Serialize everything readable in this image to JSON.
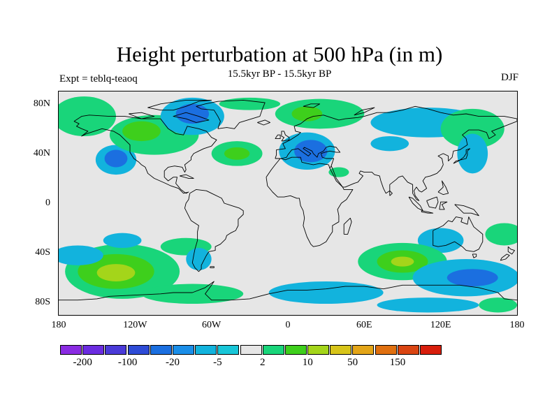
{
  "title": "Height perturbation at 500 hPa (in m)",
  "subtitle": "15.5kyr BP - 15.5kyr BP",
  "left_label": "Expt = teblq-teaoq",
  "right_label": "DJF",
  "map": {
    "projection": "cylindrical-equidistant",
    "lon_range": [
      -180,
      180
    ],
    "lat_range": [
      -90,
      90
    ],
    "background": "#e6e6e6",
    "coastline_color": "#000000",
    "lat_ticks": [
      {
        "value": 80,
        "label": "80N"
      },
      {
        "value": 40,
        "label": "40N"
      },
      {
        "value": 0,
        "label": "0"
      },
      {
        "value": -40,
        "label": "40S"
      },
      {
        "value": -80,
        "label": "80S"
      }
    ],
    "lon_ticks": [
      {
        "value": -180,
        "label": "180"
      },
      {
        "value": -120,
        "label": "120W"
      },
      {
        "value": -60,
        "label": "60W"
      },
      {
        "value": 0,
        "label": "0"
      },
      {
        "value": 60,
        "label": "60E"
      },
      {
        "value": 120,
        "label": "120E"
      },
      {
        "value": 180,
        "label": "180"
      }
    ],
    "anomaly_regions": [
      {
        "lon": -135,
        "lat": 35,
        "rlon": 16,
        "rlat": 12,
        "level": "-5"
      },
      {
        "lon": -135,
        "lat": 36,
        "rlon": 9,
        "rlat": 7,
        "level": "-20"
      },
      {
        "lon": -160,
        "lat": 70,
        "rlon": 25,
        "rlat": 16,
        "level": "2"
      },
      {
        "lon": -105,
        "lat": 55,
        "rlon": 35,
        "rlat": 16,
        "level": "2"
      },
      {
        "lon": -115,
        "lat": 58,
        "rlon": 15,
        "rlat": 8,
        "level": "10"
      },
      {
        "lon": -75,
        "lat": 70,
        "rlon": 25,
        "rlat": 15,
        "level": "-5"
      },
      {
        "lon": -75,
        "lat": 72,
        "rlon": 13,
        "rlat": 8,
        "level": "-20"
      },
      {
        "lon": -40,
        "lat": 40,
        "rlon": 20,
        "rlat": 10,
        "level": "2"
      },
      {
        "lon": -40,
        "lat": 40,
        "rlon": 10,
        "rlat": 5,
        "level": "10"
      },
      {
        "lon": -30,
        "lat": 80,
        "rlon": 24,
        "rlat": 5,
        "level": "2"
      },
      {
        "lon": 15,
        "lat": 42,
        "rlon": 22,
        "rlat": 15,
        "level": "-5"
      },
      {
        "lon": 18,
        "lat": 42,
        "rlon": 13,
        "rlat": 9,
        "level": "-20"
      },
      {
        "lon": 25,
        "lat": 72,
        "rlon": 35,
        "rlat": 12,
        "level": "2"
      },
      {
        "lon": 15,
        "lat": 72,
        "rlon": 12,
        "rlat": 6,
        "level": "10"
      },
      {
        "lon": 40,
        "lat": 25,
        "rlon": 8,
        "rlat": 4,
        "level": "2"
      },
      {
        "lon": 110,
        "lat": 65,
        "rlon": 45,
        "rlat": 12,
        "level": "-5"
      },
      {
        "lon": 145,
        "lat": 60,
        "rlon": 25,
        "rlat": 16,
        "level": "2"
      },
      {
        "lon": 145,
        "lat": 40,
        "rlon": 12,
        "rlat": 16,
        "level": "-5"
      },
      {
        "lon": 80,
        "lat": 48,
        "rlon": 15,
        "rlat": 6,
        "level": "-5"
      },
      {
        "lon": 170,
        "lat": -25,
        "rlon": 15,
        "rlat": 9,
        "level": "2"
      },
      {
        "lon": 120,
        "lat": -30,
        "rlon": 18,
        "rlat": 10,
        "level": "-5"
      },
      {
        "lon": -130,
        "lat": -55,
        "rlon": 45,
        "rlat": 22,
        "level": "2"
      },
      {
        "lon": -135,
        "lat": -55,
        "rlon": 30,
        "rlat": 14,
        "level": "10"
      },
      {
        "lon": -135,
        "lat": -56,
        "rlon": 15,
        "rlat": 7,
        "level": "20"
      },
      {
        "lon": -165,
        "lat": -42,
        "rlon": 20,
        "rlat": 8,
        "level": "-5"
      },
      {
        "lon": -130,
        "lat": -30,
        "rlon": 15,
        "rlat": 6,
        "level": "-5"
      },
      {
        "lon": -80,
        "lat": -35,
        "rlon": 20,
        "rlat": 7,
        "level": "2"
      },
      {
        "lon": -70,
        "lat": -45,
        "rlon": 10,
        "rlat": 9,
        "level": "-5"
      },
      {
        "lon": -75,
        "lat": -73,
        "rlon": 40,
        "rlat": 8,
        "level": "2"
      },
      {
        "lon": 90,
        "lat": -47,
        "rlon": 35,
        "rlat": 15,
        "level": "2"
      },
      {
        "lon": 90,
        "lat": -47,
        "rlon": 20,
        "rlat": 9,
        "level": "10"
      },
      {
        "lon": 90,
        "lat": -47,
        "rlon": 9,
        "rlat": 4,
        "level": "20"
      },
      {
        "lon": 140,
        "lat": -60,
        "rlon": 42,
        "rlat": 15,
        "level": "-5"
      },
      {
        "lon": 145,
        "lat": -60,
        "rlon": 20,
        "rlat": 7,
        "level": "-20"
      },
      {
        "lon": 30,
        "lat": -72,
        "rlon": 45,
        "rlat": 9,
        "level": "-5"
      },
      {
        "lon": 110,
        "lat": -82,
        "rlon": 40,
        "rlat": 6,
        "level": "-5"
      },
      {
        "lon": 165,
        "lat": -82,
        "rlon": 15,
        "rlat": 6,
        "level": "2"
      }
    ]
  },
  "colorbar": {
    "colors": [
      "#8a2be2",
      "#6b2ce0",
      "#4a3ad8",
      "#2e4bd6",
      "#1b6fe0",
      "#1a8ee8",
      "#12b3dd",
      "#18c6d8",
      "#e6e6e6",
      "#19d57a",
      "#3ecf1c",
      "#a4d51a",
      "#d7c419",
      "#e3a518",
      "#e07010",
      "#da4512",
      "#d81e0c"
    ],
    "labels": [
      {
        "index": 1,
        "text": "-200"
      },
      {
        "index": 3,
        "text": "-100"
      },
      {
        "index": 5,
        "text": "-20"
      },
      {
        "index": 7,
        "text": "-5"
      },
      {
        "index": 9,
        "text": "2"
      },
      {
        "index": 11,
        "text": "10"
      },
      {
        "index": 13,
        "text": "50"
      },
      {
        "index": 15,
        "text": "150"
      }
    ]
  }
}
